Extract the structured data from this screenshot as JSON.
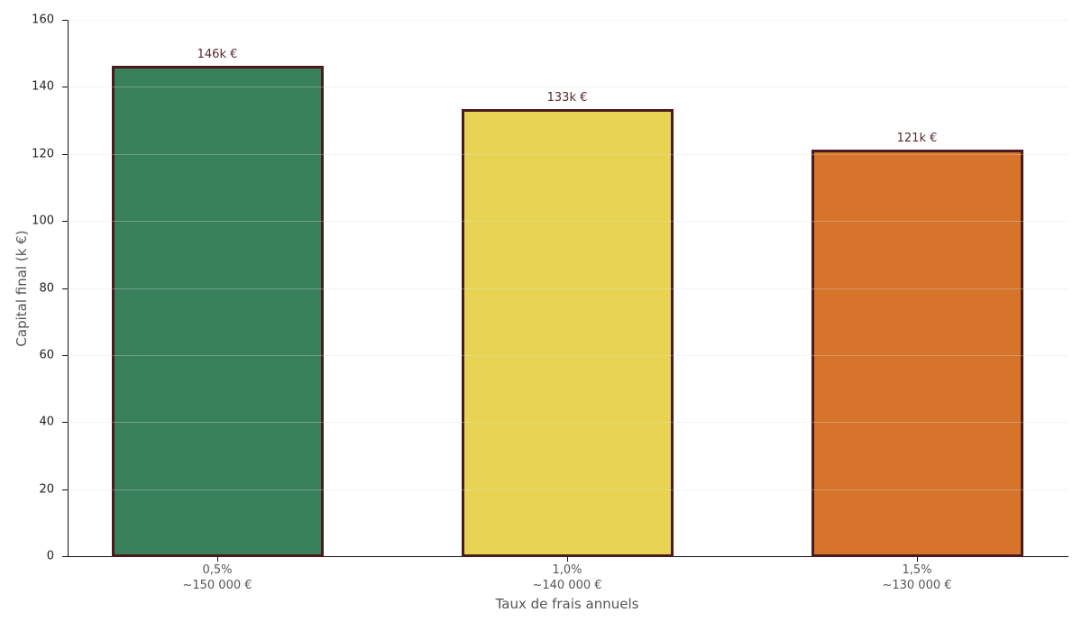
{
  "chart_data": {
    "type": "bar",
    "title": "",
    "xlabel": "Taux de frais annuels",
    "ylabel": "Capital final (k €)",
    "ylim": [
      0,
      160
    ],
    "yticks": [
      0,
      20,
      40,
      60,
      80,
      100,
      120,
      140,
      160
    ],
    "grid": true,
    "legend": null,
    "categories": [
      "0,5%",
      "1,0%",
      "1,5%"
    ],
    "category_sublabels": [
      "~150 000 €",
      "~140 000 €",
      "~130 000 €"
    ],
    "values": [
      146,
      133,
      121
    ],
    "value_labels": [
      "146k €",
      "133k €",
      "121k €"
    ],
    "colors": [
      "#37805a",
      "#e8d452",
      "#d5742a"
    ],
    "edge_color": "#4a1a1c"
  }
}
